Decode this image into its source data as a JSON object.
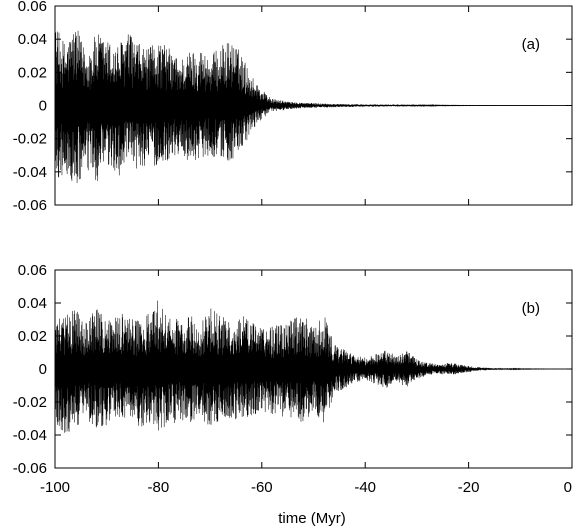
{
  "figure": {
    "xlabel": "time (Myr)"
  },
  "chart_data": [
    {
      "type": "line",
      "panel_label": "(a)",
      "xlim": [
        -100,
        0
      ],
      "ylim": [
        -0.06,
        0.06
      ],
      "x_ticks": [
        -100,
        -80,
        -60,
        -40,
        -20,
        0
      ],
      "y_ticks": [
        "0.06",
        "0.04",
        "0.02",
        "0",
        "-0.02",
        "-0.04",
        "-0.06"
      ],
      "y_tick_values": [
        0.06,
        0.04,
        0.02,
        0,
        -0.02,
        -0.04,
        -0.06
      ],
      "grid": false,
      "series": [
        {
          "color": "#000000",
          "envelope": {
            "x": [
              -100,
              -98,
              -96,
              -94,
              -92,
              -90,
              -88,
              -86,
              -84,
              -82,
              -80,
              -78,
              -76,
              -74,
              -72,
              -70,
              -68,
              -66,
              -64,
              -62,
              -60,
              -58,
              -56,
              -54,
              -50,
              -46,
              -42,
              -40,
              -36,
              -30,
              -20,
              -10,
              0
            ],
            "upper": [
              0.048,
              0.038,
              0.049,
              0.032,
              0.044,
              0.04,
              0.036,
              0.045,
              0.038,
              0.034,
              0.04,
              0.035,
              0.028,
              0.033,
              0.035,
              0.03,
              0.036,
              0.04,
              0.032,
              0.018,
              0.01,
              0.004,
              0.003,
              0.002,
              0.0015,
              0.001,
              0.0008,
              0.0007,
              0.0006,
              0.0003,
              0.0001,
              5e-05,
              0
            ],
            "lower": [
              -0.046,
              -0.042,
              -0.052,
              -0.04,
              -0.048,
              -0.038,
              -0.044,
              -0.036,
              -0.04,
              -0.035,
              -0.038,
              -0.033,
              -0.03,
              -0.034,
              -0.032,
              -0.03,
              -0.033,
              -0.034,
              -0.03,
              -0.016,
              -0.008,
              -0.004,
              -0.003,
              -0.002,
              -0.0015,
              -0.001,
              -0.0008,
              -0.0007,
              -0.0006,
              -0.0003,
              -0.0001,
              -5e-05,
              0
            ]
          }
        }
      ]
    },
    {
      "type": "line",
      "panel_label": "(b)",
      "xlim": [
        -100,
        0
      ],
      "ylim": [
        -0.06,
        0.06
      ],
      "x_ticks": [
        -100,
        -80,
        -60,
        -40,
        -20,
        0
      ],
      "y_ticks": [
        "0.06",
        "0.04",
        "0.02",
        "0",
        "-0.02",
        "-0.04",
        "-0.06"
      ],
      "y_tick_values": [
        0.06,
        0.04,
        0.02,
        0,
        -0.02,
        -0.04,
        -0.06
      ],
      "grid": false,
      "series": [
        {
          "color": "#000000",
          "envelope": {
            "x": [
              -100,
              -98,
              -96,
              -94,
              -92,
              -90,
              -88,
              -86,
              -84,
              -82,
              -80,
              -78,
              -76,
              -74,
              -72,
              -70,
              -68,
              -66,
              -64,
              -62,
              -60,
              -58,
              -56,
              -54,
              -52,
              -50,
              -48,
              -46,
              -44,
              -42,
              -40,
              -38,
              -36,
              -34,
              -32,
              -30,
              -28,
              -26,
              -24,
              -22,
              -20,
              -18,
              -15,
              -10,
              0
            ],
            "upper": [
              0.03,
              0.032,
              0.04,
              0.028,
              0.038,
              0.03,
              0.036,
              0.032,
              0.03,
              0.034,
              0.043,
              0.032,
              0.03,
              0.036,
              0.028,
              0.038,
              0.032,
              0.03,
              0.033,
              0.029,
              0.025,
              0.026,
              0.028,
              0.03,
              0.034,
              0.025,
              0.034,
              0.015,
              0.012,
              0.008,
              0.007,
              0.009,
              0.012,
              0.008,
              0.011,
              0.006,
              0.004,
              0.003,
              0.004,
              0.003,
              0.002,
              0.001,
              0.0005,
              0.0002,
              0
            ],
            "lower": [
              -0.034,
              -0.04,
              -0.038,
              -0.03,
              -0.036,
              -0.034,
              -0.032,
              -0.03,
              -0.036,
              -0.033,
              -0.038,
              -0.034,
              -0.032,
              -0.033,
              -0.03,
              -0.035,
              -0.031,
              -0.03,
              -0.032,
              -0.029,
              -0.026,
              -0.028,
              -0.029,
              -0.03,
              -0.034,
              -0.026,
              -0.033,
              -0.016,
              -0.012,
              -0.008,
              -0.007,
              -0.009,
              -0.012,
              -0.008,
              -0.011,
              -0.006,
              -0.004,
              -0.003,
              -0.004,
              -0.003,
              -0.002,
              -0.001,
              -0.0005,
              -0.0002,
              0
            ]
          }
        }
      ]
    }
  ]
}
